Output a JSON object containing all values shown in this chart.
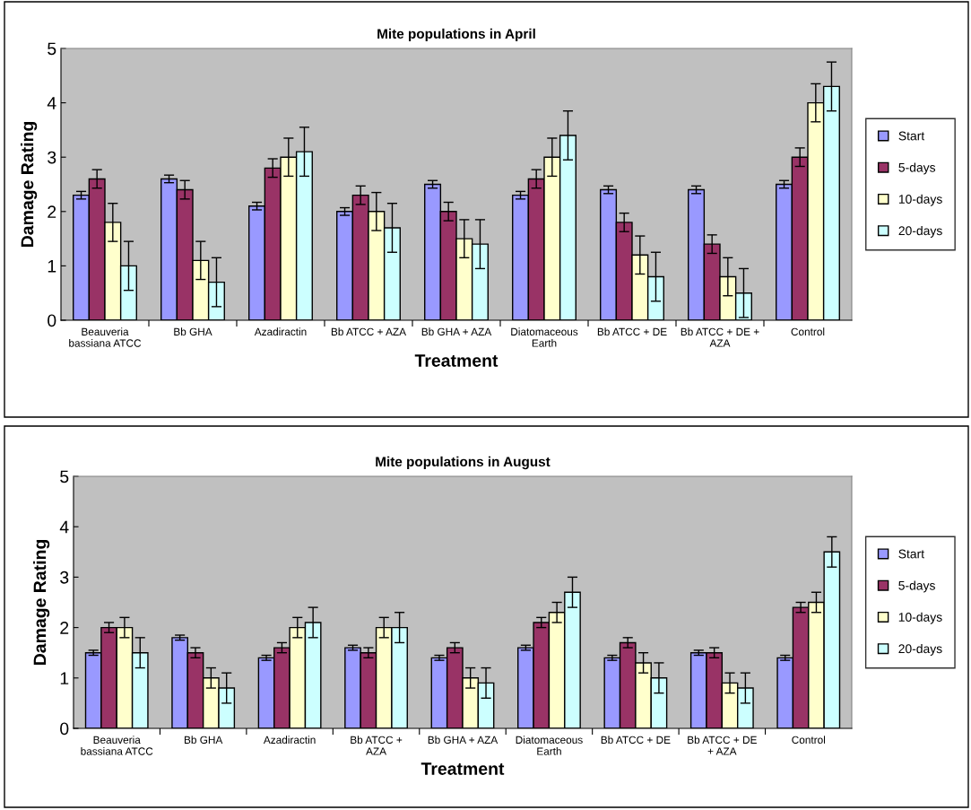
{
  "chart_data": [
    {
      "type": "bar",
      "title": "Mite populations in April",
      "xlabel": "Treatment",
      "ylabel": "Damage Rating",
      "categories": [
        "Beauveria\nbassiana ATCC",
        "Bb GHA",
        "Azadiractin",
        "Bb ATCC + AZA",
        "Bb GHA + AZA",
        "Diatomaceous\nEarth",
        "Bb ATCC + DE",
        "Bb ATCC + DE +\nAZA",
        "Control"
      ],
      "series": [
        {
          "name": "Start",
          "color": "#9999ff",
          "values": [
            2.3,
            2.6,
            2.1,
            2.0,
            2.5,
            2.3,
            2.4,
            2.4,
            2.5
          ],
          "errors": [
            0.07,
            0.07,
            0.07,
            0.07,
            0.07,
            0.07,
            0.07,
            0.07,
            0.07
          ]
        },
        {
          "name": "5-days",
          "color": "#993366",
          "values": [
            2.6,
            2.4,
            2.8,
            2.3,
            2.0,
            2.6,
            1.8,
            1.4,
            3.0
          ],
          "errors": [
            0.17,
            0.17,
            0.17,
            0.17,
            0.17,
            0.17,
            0.17,
            0.17,
            0.17
          ]
        },
        {
          "name": "10-days",
          "color": "#ffffcc",
          "values": [
            1.8,
            1.1,
            3.0,
            2.0,
            1.5,
            3.0,
            1.2,
            0.8,
            4.0
          ],
          "errors": [
            0.35,
            0.35,
            0.35,
            0.35,
            0.35,
            0.35,
            0.35,
            0.35,
            0.35
          ]
        },
        {
          "name": "20-days",
          "color": "#ccffff",
          "values": [
            1.0,
            0.7,
            3.1,
            1.7,
            1.4,
            3.4,
            0.8,
            0.5,
            4.3
          ],
          "errors": [
            0.45,
            0.45,
            0.45,
            0.45,
            0.45,
            0.45,
            0.45,
            0.45,
            0.45
          ]
        }
      ],
      "ylim": [
        0,
        5
      ],
      "yticks": [
        0,
        1,
        2,
        3,
        4,
        5
      ],
      "grid": false,
      "legend": "right"
    },
    {
      "type": "bar",
      "title": "Mite populations in August",
      "xlabel": "Treatment",
      "ylabel": "Damage Rating",
      "categories": [
        "Beauveria\nbassiana ATCC",
        "Bb GHA",
        "Azadiractin",
        "Bb ATCC +\nAZA",
        "Bb GHA + AZA",
        "Diatomaceous\nEarth",
        "Bb ATCC + DE",
        "Bb ATCC + DE\n+ AZA",
        "Control"
      ],
      "series": [
        {
          "name": "Start",
          "color": "#9999ff",
          "values": [
            1.5,
            1.8,
            1.4,
            1.6,
            1.4,
            1.6,
            1.4,
            1.5,
            1.4
          ],
          "errors": [
            0.05,
            0.05,
            0.05,
            0.05,
            0.05,
            0.05,
            0.05,
            0.05,
            0.05
          ]
        },
        {
          "name": "5-days",
          "color": "#993366",
          "values": [
            2.0,
            1.5,
            1.6,
            1.5,
            1.6,
            2.1,
            1.7,
            1.5,
            2.4
          ],
          "errors": [
            0.1,
            0.1,
            0.1,
            0.1,
            0.1,
            0.1,
            0.1,
            0.1,
            0.1
          ]
        },
        {
          "name": "10-days",
          "color": "#ffffcc",
          "values": [
            2.0,
            1.0,
            2.0,
            2.0,
            1.0,
            2.3,
            1.3,
            0.9,
            2.5
          ],
          "errors": [
            0.2,
            0.2,
            0.2,
            0.2,
            0.2,
            0.2,
            0.2,
            0.2,
            0.2
          ]
        },
        {
          "name": "20-days",
          "color": "#ccffff",
          "values": [
            1.5,
            0.8,
            2.1,
            2.0,
            0.9,
            2.7,
            1.0,
            0.8,
            3.5
          ],
          "errors": [
            0.3,
            0.3,
            0.3,
            0.3,
            0.3,
            0.3,
            0.3,
            0.3,
            0.3
          ]
        }
      ],
      "ylim": [
        0,
        5
      ],
      "yticks": [
        0,
        1,
        2,
        3,
        4,
        5
      ],
      "grid": false,
      "legend": "right"
    }
  ]
}
